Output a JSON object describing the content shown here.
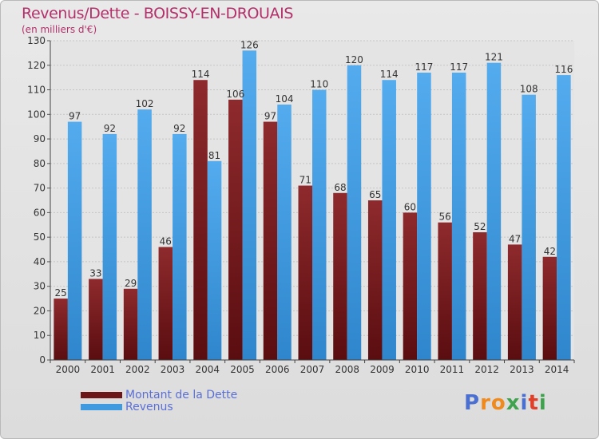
{
  "title": "Revenus/Dette - BOISSY-EN-DROUAIS",
  "subtitle": "(en milliers d'€)",
  "colors": {
    "dette": "#7a1c1f",
    "revenus": "#3f9ae0",
    "title": "#b3306a",
    "legend_text": "#5a6fd6"
  },
  "legend": [
    {
      "label": "Montant de la Dette",
      "color": "#7a1c1f"
    },
    {
      "label": "Revenus",
      "color": "#3f9ae0"
    }
  ],
  "logo": {
    "text": "Proxiti",
    "letters": [
      "P",
      "r",
      "o",
      "x",
      "i",
      "t",
      "i"
    ],
    "colors": [
      "#4a6fd0",
      "#f08a1c",
      "#f08a1c",
      "#3fa34d",
      "#4a6fd0",
      "#e0402a",
      "#3fa34d"
    ]
  },
  "chart_data": {
    "type": "bar",
    "categories": [
      "2000",
      "2001",
      "2002",
      "2003",
      "2004",
      "2005",
      "2006",
      "2007",
      "2008",
      "2009",
      "2010",
      "2011",
      "2012",
      "2013",
      "2014"
    ],
    "series": [
      {
        "name": "Montant de la Dette",
        "color": "#7a1c1f",
        "values": [
          25,
          33,
          29,
          46,
          114,
          106,
          97,
          71,
          68,
          65,
          60,
          56,
          52,
          47,
          42
        ]
      },
      {
        "name": "Revenus",
        "color": "#3f9ae0",
        "values": [
          97,
          92,
          102,
          92,
          81,
          126,
          104,
          110,
          120,
          114,
          117,
          117,
          121,
          108,
          116
        ]
      }
    ],
    "ylim": [
      0,
      130
    ],
    "yticks": [
      0,
      10,
      20,
      30,
      40,
      50,
      60,
      70,
      80,
      90,
      100,
      110,
      120,
      130
    ],
    "grid": true,
    "legend_position": "bottom-left"
  }
}
